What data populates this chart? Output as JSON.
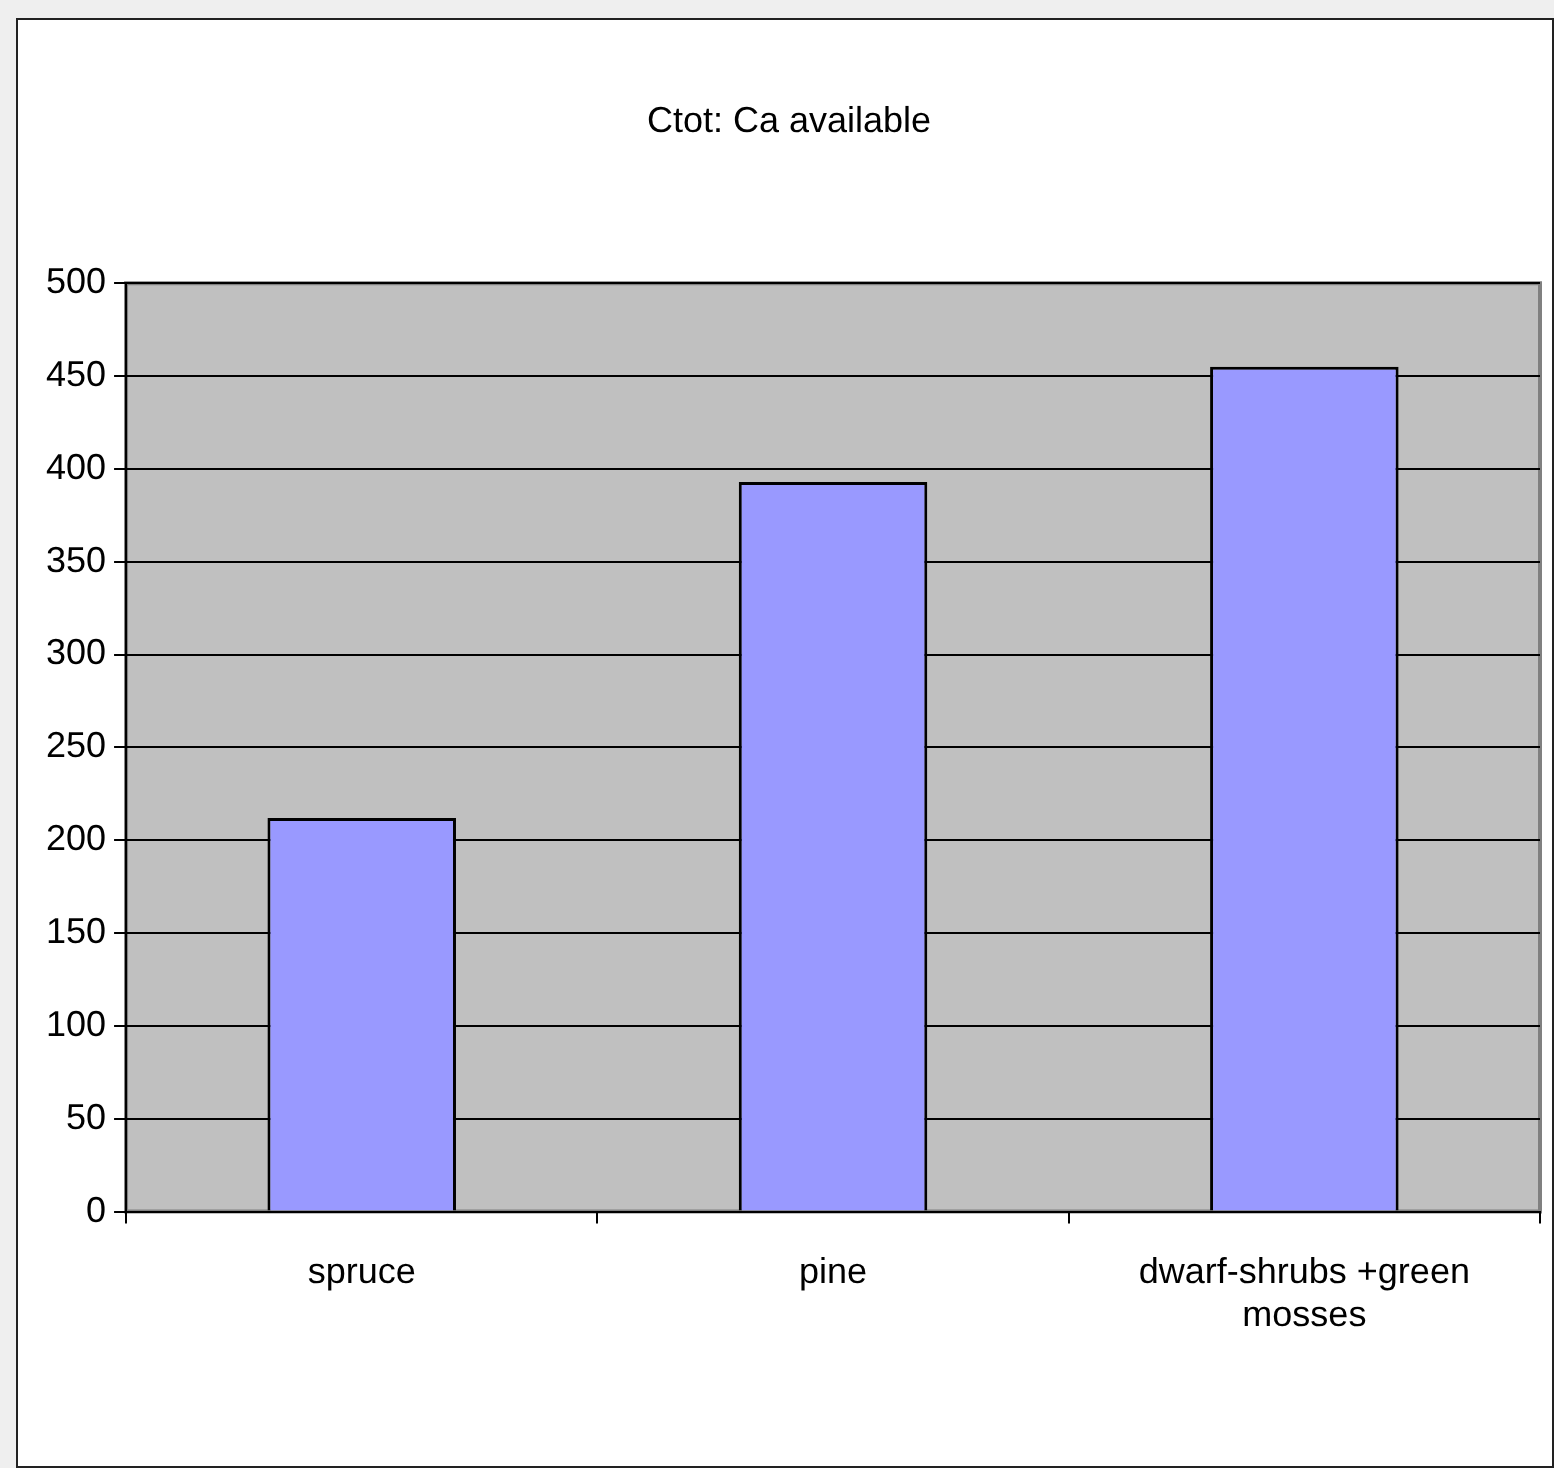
{
  "chart_data": {
    "type": "bar",
    "title": "Ctot: Ca available",
    "categories": [
      "spruce",
      "pine",
      "dwarf-shrubs +green mosses"
    ],
    "values": [
      212,
      393,
      455
    ],
    "color": "#9999ff",
    "ylim": [
      0,
      500
    ],
    "yticks": [
      0,
      50,
      100,
      150,
      200,
      250,
      300,
      350,
      400,
      450,
      500
    ],
    "grid": "y",
    "legend": false
  }
}
